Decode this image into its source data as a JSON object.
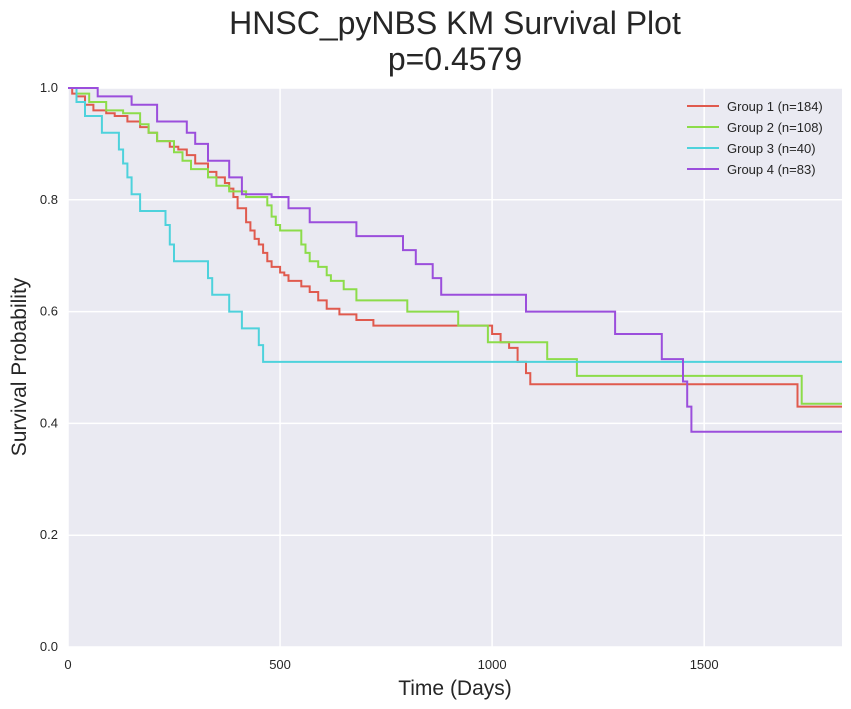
{
  "chart_data": {
    "type": "line",
    "title": "HNSC_pyNBS KM Survival Plot",
    "subtitle": "p=0.4579",
    "xlabel": "Time (Days)",
    "ylabel": "Survival Probability",
    "xlim": [
      0,
      1825
    ],
    "ylim": [
      0,
      1
    ],
    "xticks": [
      "0",
      "500",
      "1000",
      "1500"
    ],
    "xtick_values": [
      0,
      500,
      1000,
      1500
    ],
    "yticks": [
      "0.0",
      "0.2",
      "0.4",
      "0.6",
      "0.8",
      "1.0"
    ],
    "ytick_values": [
      0,
      0.2,
      0.4,
      0.6,
      0.8,
      1.0
    ],
    "grid": true,
    "legend_position": "top-right",
    "background": "#EAEAF2",
    "series": [
      {
        "name": "Group 1 (n=184)",
        "color": "#E05A4E",
        "x": [
          0,
          10,
          20,
          40,
          60,
          90,
          110,
          140,
          170,
          190,
          210,
          240,
          260,
          280,
          300,
          330,
          350,
          370,
          380,
          390,
          400,
          420,
          430,
          440,
          450,
          460,
          470,
          480,
          500,
          510,
          520,
          550,
          570,
          590,
          610,
          640,
          680,
          720,
          1000,
          1020,
          1040,
          1060,
          1080,
          1090,
          1290,
          1440,
          1720,
          1825
        ],
        "y": [
          1.0,
          0.99,
          0.985,
          0.97,
          0.96,
          0.955,
          0.95,
          0.94,
          0.93,
          0.92,
          0.905,
          0.895,
          0.89,
          0.88,
          0.865,
          0.85,
          0.84,
          0.83,
          0.82,
          0.805,
          0.785,
          0.76,
          0.745,
          0.73,
          0.72,
          0.705,
          0.69,
          0.68,
          0.67,
          0.665,
          0.655,
          0.645,
          0.635,
          0.62,
          0.605,
          0.595,
          0.585,
          0.575,
          0.56,
          0.545,
          0.535,
          0.51,
          0.49,
          0.47,
          0.47,
          0.47,
          0.43,
          0.43
        ]
      },
      {
        "name": "Group 2 (n=108)",
        "color": "#8CDC4A",
        "x": [
          0,
          20,
          50,
          90,
          130,
          170,
          190,
          210,
          250,
          270,
          290,
          330,
          350,
          380,
          420,
          470,
          480,
          490,
          500,
          550,
          560,
          570,
          590,
          610,
          620,
          650,
          680,
          800,
          920,
          990,
          1130,
          1200,
          1730,
          1825
        ],
        "y": [
          1.0,
          0.99,
          0.975,
          0.96,
          0.955,
          0.935,
          0.92,
          0.905,
          0.885,
          0.87,
          0.855,
          0.84,
          0.825,
          0.815,
          0.805,
          0.79,
          0.77,
          0.755,
          0.745,
          0.72,
          0.705,
          0.69,
          0.68,
          0.665,
          0.655,
          0.64,
          0.62,
          0.6,
          0.575,
          0.545,
          0.515,
          0.485,
          0.435,
          0.435
        ]
      },
      {
        "name": "Group 3 (n=40)",
        "color": "#4ED2DC",
        "x": [
          0,
          20,
          40,
          80,
          120,
          130,
          140,
          150,
          170,
          190,
          230,
          240,
          250,
          280,
          330,
          340,
          380,
          410,
          450,
          460,
          1825
        ],
        "y": [
          1.0,
          0.975,
          0.95,
          0.92,
          0.89,
          0.865,
          0.84,
          0.81,
          0.78,
          0.78,
          0.755,
          0.72,
          0.69,
          0.69,
          0.66,
          0.63,
          0.6,
          0.57,
          0.54,
          0.51,
          0.51
        ]
      },
      {
        "name": "Group 4 (n=83)",
        "color": "#9B4EDC",
        "x": [
          0,
          70,
          150,
          210,
          280,
          300,
          330,
          380,
          410,
          480,
          520,
          570,
          680,
          790,
          820,
          860,
          880,
          1080,
          1290,
          1400,
          1450,
          1460,
          1470,
          1825
        ],
        "y": [
          1.0,
          0.985,
          0.97,
          0.94,
          0.92,
          0.9,
          0.87,
          0.84,
          0.81,
          0.805,
          0.785,
          0.76,
          0.735,
          0.71,
          0.685,
          0.66,
          0.63,
          0.6,
          0.56,
          0.515,
          0.475,
          0.43,
          0.385,
          0.385
        ]
      }
    ]
  }
}
